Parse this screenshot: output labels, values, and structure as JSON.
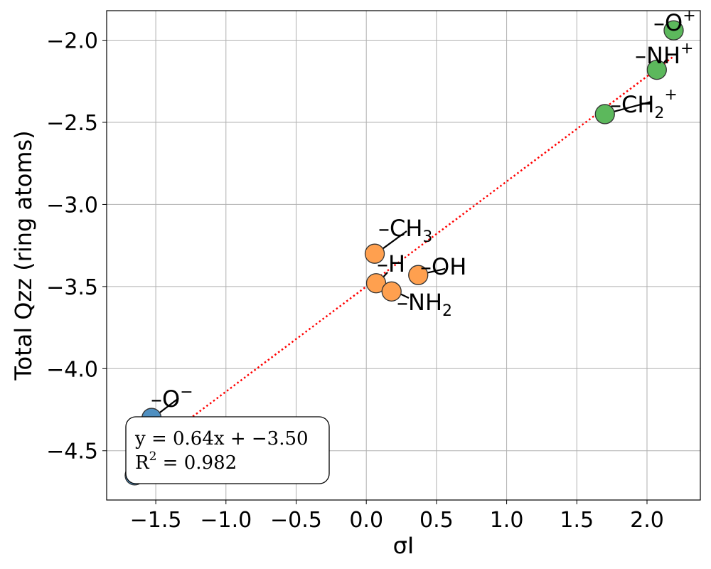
{
  "chart_data": {
    "type": "scatter",
    "xlabel": "σI",
    "ylabel": "Total Qzz (ring atoms)",
    "xlim": [
      -1.85,
      2.38
    ],
    "ylim": [
      -4.8,
      -1.82
    ],
    "x_ticks": [
      -1.5,
      -1.0,
      -0.5,
      0.0,
      0.5,
      1.0,
      1.5,
      2.0
    ],
    "x_tick_labels": [
      "−1.5",
      "−1.0",
      "−0.5",
      "0.0",
      "0.5",
      "1.0",
      "1.5",
      "2.0"
    ],
    "y_ticks": [
      -2.0,
      -2.5,
      -3.0,
      -3.5,
      -4.0,
      -4.5
    ],
    "y_tick_labels": [
      "−2.0",
      "−2.5",
      "−3.0",
      "−3.5",
      "−4.0",
      "−4.5"
    ],
    "grid": true,
    "group_colors": {
      "blue": "#4f8fc0",
      "orange": "#ffa04f",
      "green": "#5cb85c"
    },
    "points": [
      {
        "x": -1.53,
        "y": -4.3,
        "group": "blue",
        "label": "–O",
        "sup": "−",
        "sub": ""
      },
      {
        "x": -1.65,
        "y": -4.65,
        "group": "blue",
        "label": "",
        "sup": "",
        "sub": ""
      },
      {
        "x": 0.06,
        "y": -3.3,
        "group": "orange",
        "label": "–CH",
        "sup": "",
        "sub": "3"
      },
      {
        "x": 0.07,
        "y": -3.48,
        "group": "orange",
        "label": "–H",
        "sup": "",
        "sub": ""
      },
      {
        "x": 0.37,
        "y": -3.43,
        "group": "orange",
        "label": "–OH",
        "sup": "",
        "sub": ""
      },
      {
        "x": 0.18,
        "y": -3.53,
        "group": "orange",
        "label": "–NH",
        "sup": "",
        "sub": "2"
      },
      {
        "x": 1.7,
        "y": -2.45,
        "group": "green",
        "label": "–CH",
        "sup": "+",
        "sub": "2"
      },
      {
        "x": 2.07,
        "y": -2.18,
        "group": "green",
        "label": "–NH",
        "sup": "+",
        "sub": ""
      },
      {
        "x": 2.19,
        "y": -1.94,
        "group": "green",
        "label": "–O",
        "sup": "+",
        "sub": ""
      }
    ],
    "fit": {
      "slope": 0.64,
      "intercept": -3.5,
      "x_range": [
        -1.65,
        2.19
      ],
      "color": "#ff0000",
      "style": "dotted"
    },
    "annotation": {
      "line1": "y = 0.64x + −3.50",
      "r2_label": "R",
      "r2_sup": "2",
      "r2_value": " = 0.982"
    }
  }
}
